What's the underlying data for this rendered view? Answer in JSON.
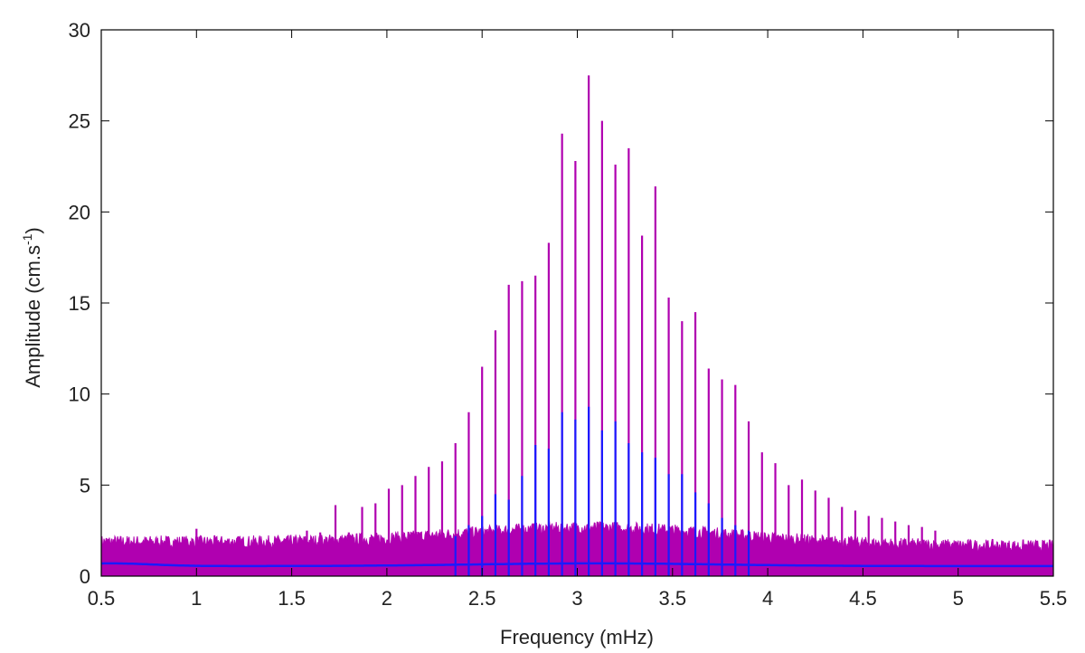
{
  "chart_data": {
    "type": "line",
    "title": "",
    "xlabel": "Frequency (mHz)",
    "ylabel": "Amplitude (cm.s",
    "ylabel_sup": "-1",
    "ylabel_close": ")",
    "xlim": [
      0.5,
      5.5
    ],
    "ylim": [
      0,
      30
    ],
    "xticks": [
      "0.5",
      "1",
      "1.5",
      "2",
      "2.5",
      "3",
      "3.5",
      "4",
      "4.5",
      "5",
      "5.5"
    ],
    "yticks": [
      "0",
      "5",
      "10",
      "15",
      "20",
      "25",
      "30"
    ],
    "grid": false,
    "series": [
      {
        "color": "#b000b0",
        "x": [
          1.0,
          1.58,
          1.65,
          1.73,
          1.8,
          1.87,
          1.94,
          2.01,
          2.08,
          2.15,
          2.22,
          2.29,
          2.36,
          2.43,
          2.5,
          2.57,
          2.64,
          2.71,
          2.78,
          2.85,
          2.92,
          2.99,
          3.06,
          3.13,
          3.2,
          3.27,
          3.34,
          3.41,
          3.48,
          3.55,
          3.62,
          3.69,
          3.76,
          3.83,
          3.9,
          3.97,
          4.04,
          4.11,
          4.18,
          4.25,
          4.32,
          4.39,
          4.46,
          4.53,
          4.6,
          4.67,
          4.74,
          4.81,
          4.88
        ],
        "y": [
          2.6,
          2.5,
          2.4,
          3.9,
          2.4,
          3.8,
          4.0,
          4.8,
          5.0,
          5.5,
          6.0,
          6.3,
          7.3,
          9.0,
          11.5,
          13.5,
          16.0,
          16.2,
          16.5,
          18.3,
          24.3,
          22.8,
          27.5,
          25.0,
          22.6,
          23.5,
          18.7,
          21.4,
          15.3,
          14.0,
          14.5,
          11.4,
          10.8,
          10.5,
          8.5,
          6.8,
          6.2,
          5.0,
          5.3,
          4.7,
          4.3,
          3.8,
          3.6,
          3.3,
          3.2,
          3.0,
          2.8,
          2.7,
          2.5
        ]
      },
      {
        "color": "#1a1aff",
        "x": [
          2.36,
          2.43,
          2.5,
          2.57,
          2.64,
          2.71,
          2.78,
          2.85,
          2.92,
          2.99,
          3.06,
          3.13,
          3.2,
          3.27,
          3.34,
          3.41,
          3.48,
          3.55,
          3.62,
          3.69,
          3.76,
          3.83,
          3.9
        ],
        "y": [
          2.2,
          2.8,
          3.3,
          4.5,
          4.2,
          5.5,
          7.2,
          7.0,
          9.0,
          8.6,
          9.3,
          8.0,
          8.5,
          7.3,
          6.8,
          6.5,
          5.6,
          5.6,
          4.6,
          4.0,
          3.2,
          2.8,
          2.5
        ]
      }
    ]
  }
}
